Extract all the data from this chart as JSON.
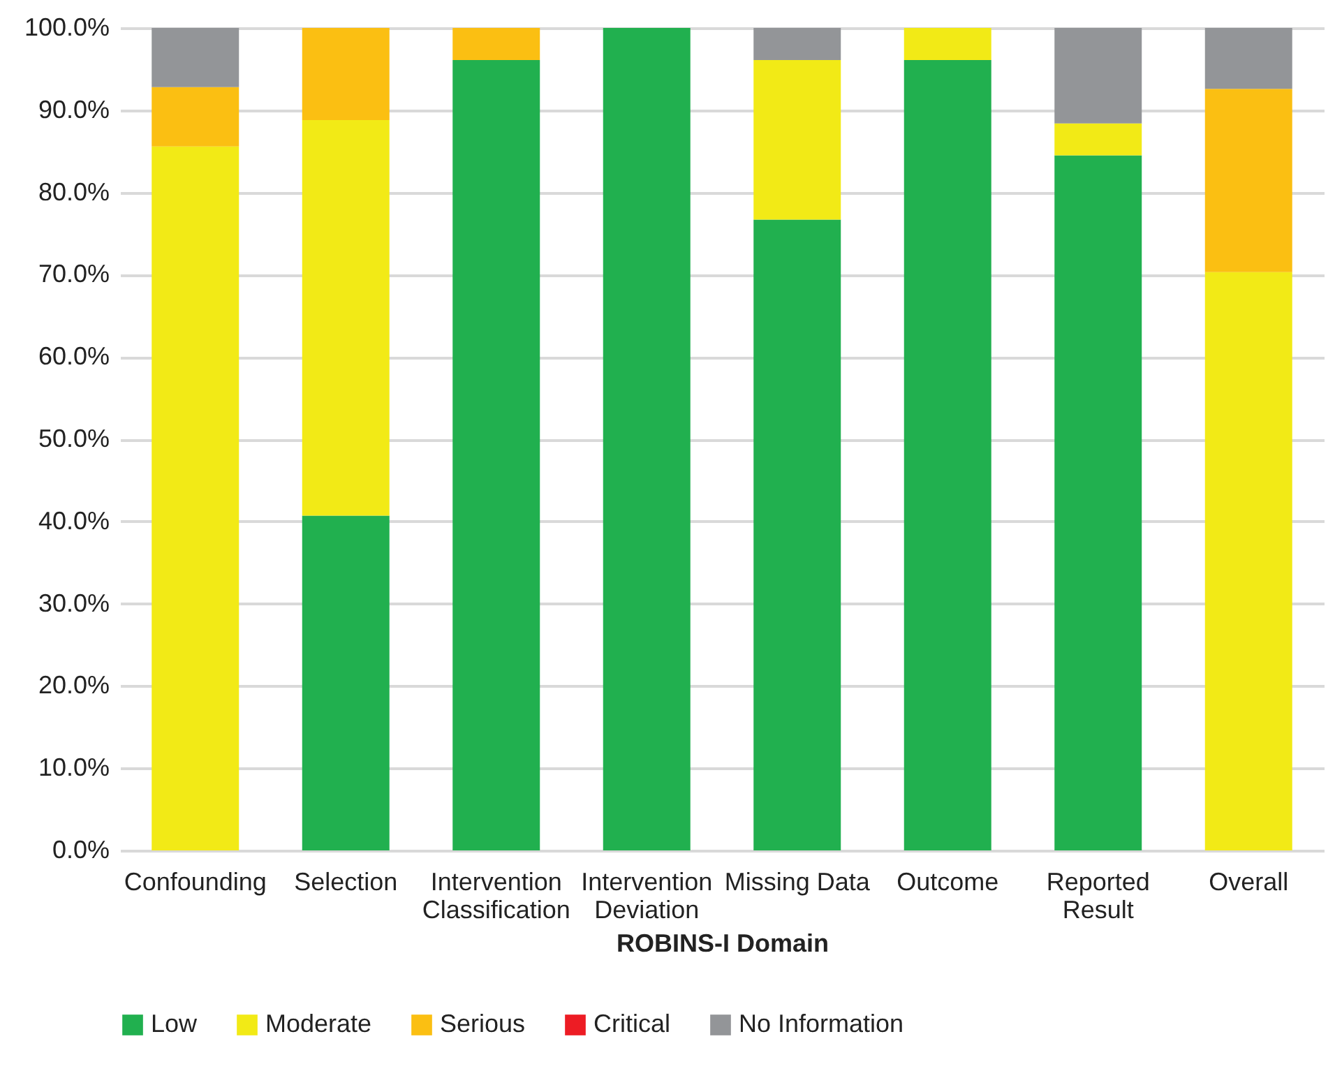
{
  "chart_data": {
    "type": "bar",
    "stacked": true,
    "xlabel": "ROBINS-I Domain",
    "categories": [
      "Confounding",
      "Selection",
      "Intervention Classification",
      "Intervention Deviation",
      "Missing Data",
      "Outcome",
      "Reported Result",
      "Overall"
    ],
    "series": [
      {
        "name": "Low",
        "color": "#21b04f",
        "values": [
          0,
          40.7,
          96.1,
          100,
          76.7,
          96.1,
          84.5,
          0
        ]
      },
      {
        "name": "Moderate",
        "color": "#f2ea16",
        "values": [
          85.6,
          48.1,
          0,
          0,
          19.4,
          3.9,
          3.9,
          70.3
        ]
      },
      {
        "name": "Serious",
        "color": "#fbbf12",
        "values": [
          7.2,
          11.2,
          3.9,
          0,
          0,
          0,
          0,
          22.3
        ]
      },
      {
        "name": "Critical",
        "color": "#ed1c24",
        "values": [
          0,
          0,
          0,
          0,
          0,
          0,
          0,
          0
        ]
      },
      {
        "name": "No Information",
        "color": "#939598",
        "values": [
          7.2,
          0,
          0,
          0,
          3.9,
          0,
          11.6,
          7.4
        ]
      }
    ],
    "ylim": [
      0,
      100
    ],
    "yticks": [
      {
        "value": 0,
        "label": "0.0%"
      },
      {
        "value": 10,
        "label": "10.0%"
      },
      {
        "value": 20,
        "label": "20.0%"
      },
      {
        "value": 30,
        "label": "30.0%"
      },
      {
        "value": 40,
        "label": "40.0%"
      },
      {
        "value": 50,
        "label": "50.0%"
      },
      {
        "value": 60,
        "label": "60.0%"
      },
      {
        "value": 70,
        "label": "70.0%"
      },
      {
        "value": 80,
        "label": "80.0%"
      },
      {
        "value": 90,
        "label": "90.0%"
      },
      {
        "value": 100,
        "label": "100.0%"
      }
    ],
    "grid": "y",
    "legend": "bottom"
  }
}
